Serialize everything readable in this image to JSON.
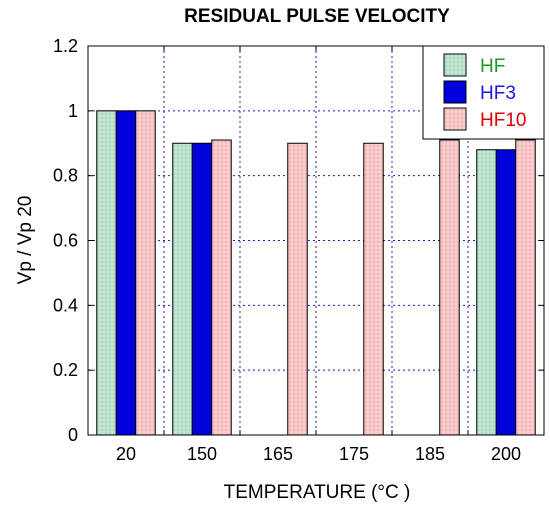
{
  "chart_data": {
    "type": "bar",
    "title": "RESIDUAL PULSE VELOCITY",
    "xlabel": "TEMPERATURE (°C )",
    "ylabel": "Vp / Vp 20",
    "categories": [
      "20",
      "150",
      "165",
      "175",
      "185",
      "200"
    ],
    "ylim": [
      0,
      1.2
    ],
    "yticks": [
      "0",
      "0.2",
      "0.4",
      "0.6",
      "0.8",
      "1",
      "1.2"
    ],
    "grid": true,
    "legend_position": "top-right",
    "series": [
      {
        "name": "HF",
        "values": [
          1.0,
          0.9,
          null,
          null,
          null,
          0.88
        ],
        "fill": "#bfe3cf",
        "label_color": "#1a9a2a"
      },
      {
        "name": "HF3",
        "values": [
          1.0,
          0.9,
          null,
          null,
          null,
          0.88
        ],
        "fill": "#0000dd",
        "label_color": "#1a1adf"
      },
      {
        "name": "HF10",
        "values": [
          1.0,
          0.91,
          0.9,
          0.9,
          0.91,
          0.91
        ],
        "fill": "#f7c7c7",
        "label_color": "#e00000"
      }
    ]
  }
}
